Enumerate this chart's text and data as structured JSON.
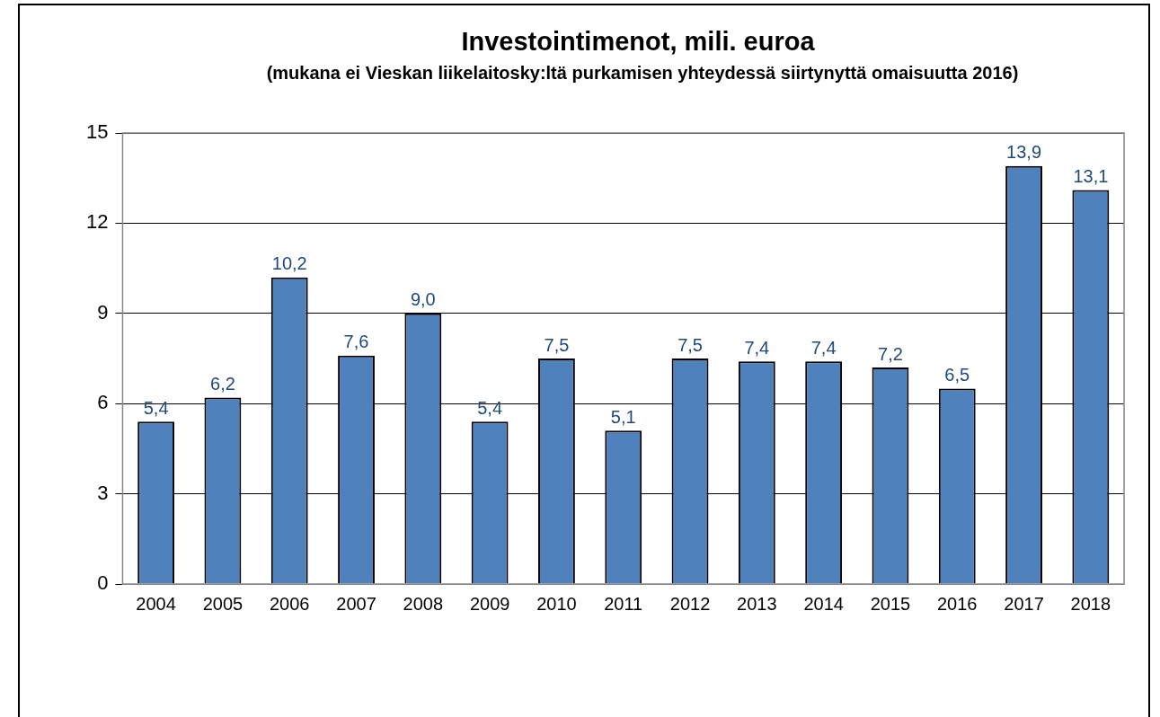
{
  "chart_data": {
    "type": "bar",
    "title": "Investointimenot, mili. euroa",
    "subtitle": "(mukana ei Vieskan liikelaitosky:ltä purkamisen yhteydessä siirtynyttä omaisuutta 2016)",
    "categories": [
      "2004",
      "2005",
      "2006",
      "2007",
      "2008",
      "2009",
      "2010",
      "2011",
      "2012",
      "2013",
      "2014",
      "2015",
      "2016",
      "2017",
      "2018"
    ],
    "values": [
      5.4,
      6.2,
      10.2,
      7.6,
      9.0,
      5.4,
      7.5,
      5.1,
      7.5,
      7.4,
      7.4,
      7.2,
      6.5,
      13.9,
      13.1
    ],
    "value_labels": [
      "5,4",
      "6,2",
      "10,2",
      "7,6",
      "9,0",
      "5,4",
      "7,5",
      "5,1",
      "7,5",
      "7,4",
      "7,4",
      "7,2",
      "6,5",
      "13,9",
      "13,1"
    ],
    "color": "#4f81bd",
    "ylim": [
      0,
      15
    ],
    "yticks": [
      0,
      3,
      6,
      9,
      12,
      15
    ],
    "grid": "y",
    "legend": false
  }
}
